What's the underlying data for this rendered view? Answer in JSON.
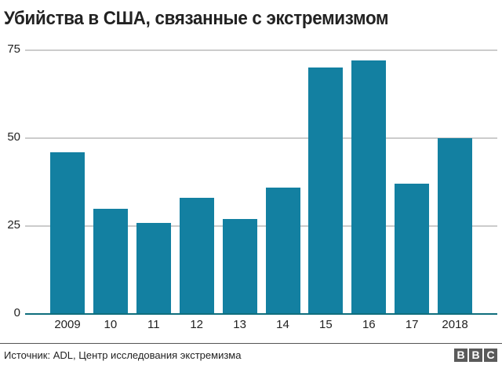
{
  "header": {
    "title": "Убийства в США, связанные с экстремизмом"
  },
  "footer": {
    "source": "Источник: ADL, Центр исследования экстремизма",
    "logo_letters": [
      "B",
      "B",
      "C"
    ]
  },
  "colors": {
    "bar": "#1380a1",
    "baseline": "#0f6e7d",
    "grid": "#cccccc",
    "text": "#222222"
  },
  "chart_data": {
    "type": "bar",
    "title": "Убийства в США, связанные с экстремизмом",
    "xlabel": "",
    "ylabel": "",
    "categories": [
      "2009",
      "10",
      "11",
      "12",
      "13",
      "14",
      "15",
      "16",
      "17",
      "2018"
    ],
    "values": [
      46,
      30,
      26,
      33,
      27,
      36,
      70,
      72,
      37,
      50
    ],
    "yticks": [
      0,
      25,
      50,
      75
    ],
    "ylim": [
      0,
      75
    ],
    "grid": true,
    "legend": null,
    "source": "Источник: ADL, Центр исследования экстремизма"
  }
}
